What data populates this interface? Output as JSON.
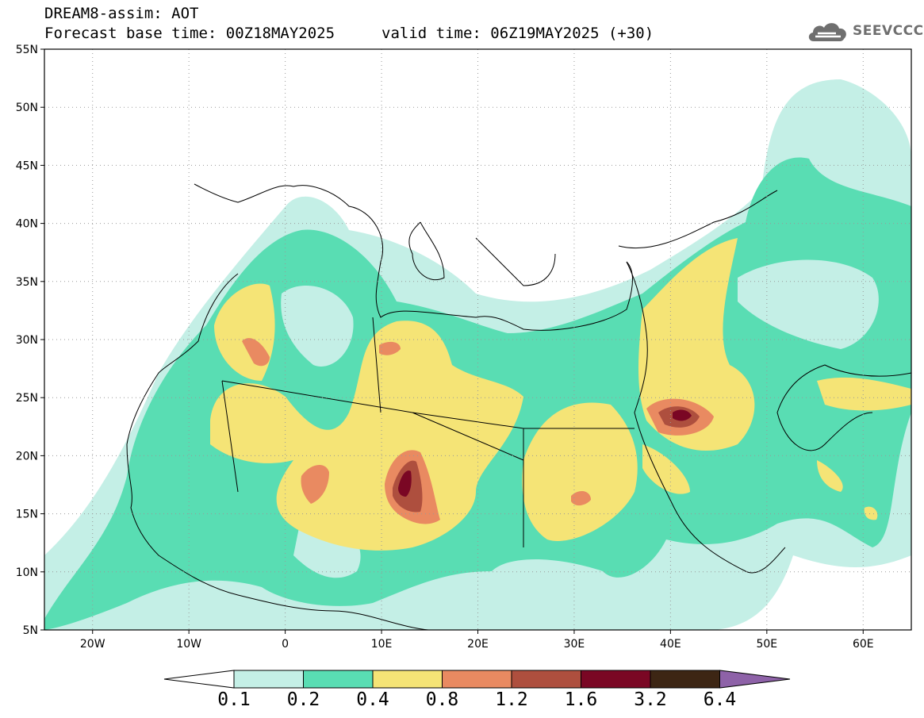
{
  "header": {
    "title": "DREAM8-assim: AOT",
    "base_time": "Forecast base time: 00Z18MAY2025",
    "valid_time": "valid time: 06Z19MAY2025 (+30)"
  },
  "logo": {
    "text": "SEEVCCC",
    "icon": "cloud-icon"
  },
  "map": {
    "lat_labels": [
      "55N",
      "50N",
      "45N",
      "40N",
      "35N",
      "30N",
      "25N",
      "20N",
      "15N",
      "10N",
      "5N"
    ],
    "lat_values": [
      55,
      50,
      45,
      40,
      35,
      30,
      25,
      20,
      15,
      10,
      5
    ],
    "lon_labels": [
      "20W",
      "10W",
      "0",
      "10E",
      "20E",
      "30E",
      "40E",
      "50E",
      "60E"
    ],
    "lon_values": [
      -20,
      -10,
      0,
      10,
      20,
      30,
      40,
      50,
      60
    ],
    "extent": {
      "lon_min": -25,
      "lon_max": 65,
      "lat_min": 5,
      "lat_max": 55
    },
    "gridlines": "dotted",
    "shading": "aerosol optical thickness contours"
  },
  "colorbar": {
    "labels": [
      "0.1",
      "0.2",
      "0.4",
      "0.8",
      "1.2",
      "1.6",
      "3.2",
      "6.4"
    ],
    "colors": [
      "#ffffff",
      "#c4efe6",
      "#59ddb3",
      "#f5e476",
      "#e98a61",
      "#ae4f3e",
      "#7a0724",
      "#3d2614",
      "#8e62a8"
    ]
  }
}
